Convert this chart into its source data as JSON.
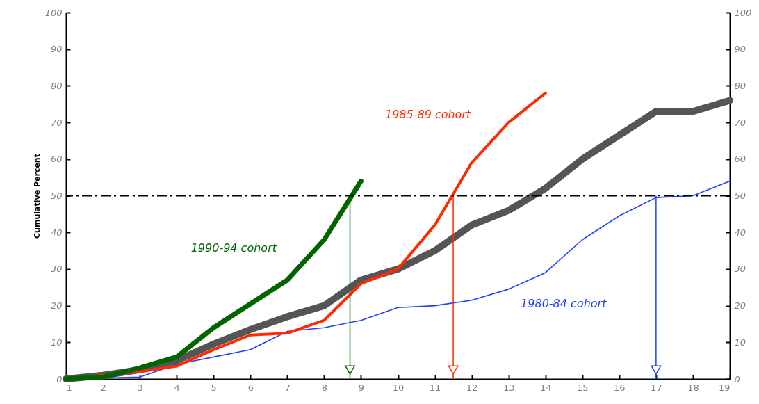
{
  "chart_data": {
    "type": "line",
    "ylabel": "Cumulative Percent",
    "x": [
      1,
      2,
      3,
      4,
      5,
      6,
      7,
      8,
      9,
      10,
      11,
      12,
      13,
      14,
      15,
      16,
      17,
      18,
      19
    ],
    "series": [
      {
        "color": "#555555",
        "values": [
          0,
          1,
          2.5,
          5,
          9.5,
          13.5,
          17,
          20,
          27,
          30,
          35,
          42,
          46,
          52,
          60,
          66.5,
          73,
          73,
          76
        ]
      },
      {
        "name": "1980-84 cohort",
        "color": "#2040ff",
        "values": [
          0,
          null,
          0.5,
          4,
          6,
          8,
          13,
          14,
          16,
          19.5,
          20,
          21.5,
          24.5,
          29,
          38,
          44.5,
          49.5,
          50,
          54
        ]
      },
      {
        "name": "1985-89 cohort",
        "color": "#ff2a00",
        "values": [
          0,
          null,
          2,
          3.5,
          8,
          12,
          12.5,
          16,
          26,
          30,
          42,
          59,
          70,
          78,
          null,
          null,
          null,
          null,
          null
        ]
      },
      {
        "name": "1990-94 cohort",
        "color": "#006400",
        "values": [
          0,
          0.5,
          3,
          6,
          14,
          20.5,
          27,
          38,
          54,
          null,
          null,
          null,
          null,
          null,
          null,
          null,
          null,
          null,
          null
        ]
      }
    ],
    "xlim": [
      1,
      19
    ],
    "xticks": [
      1,
      2,
      3,
      4,
      5,
      6,
      7,
      8,
      9,
      10,
      11,
      12,
      13,
      14,
      15,
      16,
      17,
      18,
      19
    ],
    "ylim": [
      0,
      100
    ],
    "yticks": [
      0,
      10,
      20,
      30,
      40,
      50,
      60,
      70,
      80,
      90,
      100
    ],
    "y2lim": [
      0,
      100
    ],
    "y2ticks": [
      0,
      10,
      20,
      30,
      40,
      50,
      60,
      70,
      80,
      90,
      100
    ],
    "ref_lines": [
      {
        "axis": "y",
        "value": 50,
        "color": "#000000",
        "line_style": "dashdot"
      },
      {
        "axis": "x",
        "value": 8.7,
        "color": "#006400"
      },
      {
        "axis": "x",
        "value": 11.5,
        "color": "#ff2a00"
      },
      {
        "axis": "x",
        "value": 17,
        "color": "#2040ff"
      }
    ],
    "grid": false,
    "legend": false,
    "marker": "none",
    "line_style": "solid"
  }
}
